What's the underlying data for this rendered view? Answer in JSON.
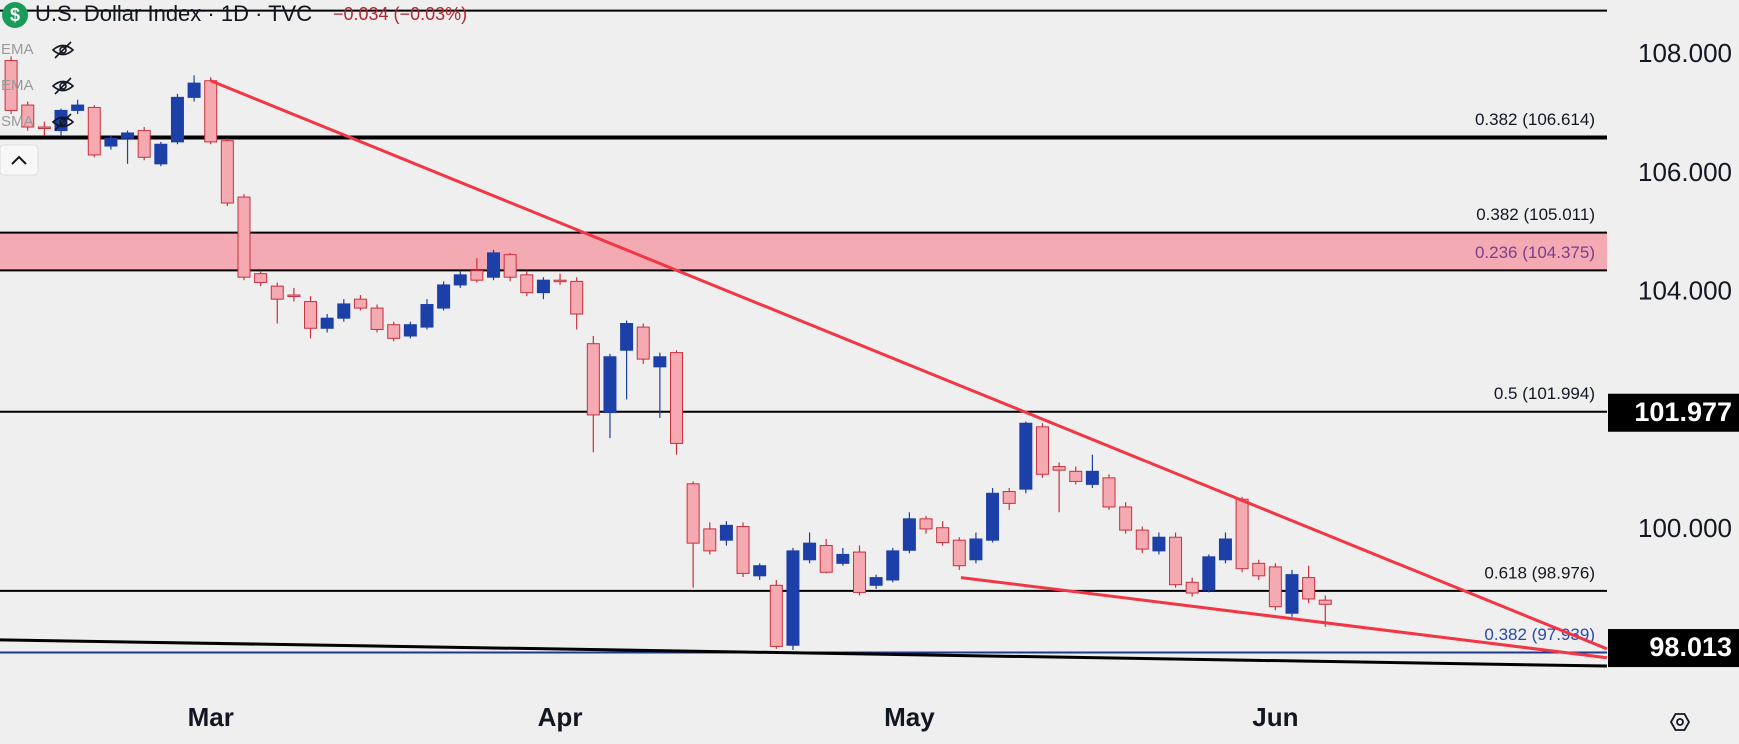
{
  "chart_data": {
    "type": "candlestick",
    "title": "U.S. Dollar Index · 1D · TVC",
    "change": "−0.034 (−0.03%)",
    "logo": "$",
    "indicators": [
      "EMA",
      "EMA",
      "SMA"
    ],
    "categories": [
      null,
      null,
      null,
      null,
      null,
      null,
      null,
      null,
      null,
      null,
      null,
      null,
      "Mar",
      null,
      null,
      null,
      null,
      null,
      null,
      null,
      null,
      null,
      null,
      null,
      null,
      null,
      null,
      null,
      null,
      null,
      null,
      null,
      null,
      "Apr",
      null,
      null,
      null,
      null,
      null,
      null,
      null,
      null,
      null,
      null,
      null,
      null,
      null,
      null,
      null,
      null,
      null,
      null,
      null,
      null,
      "May",
      null,
      null,
      null,
      null,
      null,
      null,
      null,
      null,
      null,
      null,
      null,
      null,
      null,
      null,
      null,
      null,
      null,
      null,
      null,
      null,
      null,
      "Jun",
      null,
      null,
      null
    ],
    "open": [
      107.91,
      107.16,
      106.79,
      106.73,
      107.07,
      107.12,
      106.47,
      106.6,
      106.73,
      106.17,
      106.54,
      107.29,
      107.57,
      106.56,
      105.61,
      104.32,
      104.11,
      103.96,
      103.85,
      103.4,
      103.57,
      103.89,
      103.74,
      103.46,
      103.27,
      103.42,
      103.74,
      104.13,
      104.37,
      104.26,
      104.64,
      104.3,
      104.0,
      104.21,
      104.19,
      103.14,
      101.98,
      103.03,
      103.42,
      102.75,
      102.99,
      100.78,
      100.02,
      99.83,
      100.06,
      99.23,
      99.07,
      98.06,
      99.5,
      99.74,
      99.44,
      99.63,
      99.07,
      99.16,
      99.66,
      100.19,
      100.04,
      99.83,
      99.5,
      99.83,
      100.65,
      100.69,
      101.74,
      101.07,
      100.99,
      100.77,
      100.88,
      100.39,
      100.0,
      99.65,
      99.88,
      99.12,
      98.99,
      99.5,
      100.52,
      99.44,
      99.38,
      98.6,
      99.2,
      98.82
    ],
    "high": [
      107.98,
      107.22,
      106.88,
      107.1,
      107.25,
      107.16,
      106.65,
      106.73,
      106.79,
      106.54,
      107.35,
      107.66,
      107.63,
      106.6,
      105.66,
      104.37,
      104.17,
      104.08,
      103.94,
      103.64,
      103.89,
      103.96,
      103.8,
      103.51,
      103.51,
      103.89,
      104.19,
      104.37,
      104.58,
      104.72,
      104.67,
      104.37,
      104.26,
      104.32,
      104.26,
      103.27,
      102.97,
      103.53,
      103.48,
      102.99,
      103.03,
      100.82,
      100.13,
      100.15,
      100.13,
      99.44,
      99.16,
      99.7,
      99.96,
      99.85,
      99.7,
      99.74,
      99.25,
      99.7,
      100.3,
      100.24,
      100.15,
      99.88,
      99.96,
      100.71,
      100.71,
      101.83,
      101.8,
      101.14,
      101.07,
      101.27,
      100.94,
      100.47,
      100.06,
      99.96,
      99.96,
      99.2,
      99.59,
      99.96,
      100.56,
      99.5,
      99.44,
      99.33,
      99.4,
      98.9
    ],
    "low": [
      107.01,
      106.73,
      106.65,
      106.65,
      107.01,
      106.28,
      106.41,
      106.17,
      106.23,
      106.13,
      106.5,
      107.22,
      106.5,
      105.46,
      104.21,
      104.11,
      103.48,
      103.85,
      103.23,
      103.33,
      103.51,
      103.7,
      103.33,
      103.18,
      103.23,
      103.38,
      103.7,
      104.08,
      104.17,
      104.21,
      104.19,
      103.94,
      103.89,
      104.13,
      103.38,
      101.31,
      101.55,
      102.2,
      102.8,
      101.89,
      101.27,
      99.03,
      99.59,
      99.74,
      99.21,
      99.16,
      98.0,
      97.98,
      99.44,
      99.27,
      99.4,
      98.9,
      99.01,
      99.12,
      99.61,
      99.94,
      99.74,
      99.33,
      99.44,
      99.79,
      100.34,
      100.62,
      100.88,
      100.3,
      100.77,
      100.71,
      100.34,
      99.94,
      99.61,
      99.59,
      99.03,
      98.88,
      98.95,
      99.44,
      99.29,
      99.16,
      98.65,
      98.54,
      98.77,
      98.37
    ],
    "close": [
      107.07,
      106.79,
      106.77,
      107.07,
      107.16,
      106.32,
      106.6,
      106.69,
      106.28,
      106.5,
      107.29,
      107.53,
      106.54,
      105.51,
      104.26,
      104.17,
      103.89,
      103.94,
      103.4,
      103.57,
      103.81,
      103.74,
      103.38,
      103.23,
      103.46,
      103.8,
      104.13,
      104.3,
      104.21,
      104.67,
      104.26,
      104.0,
      104.21,
      104.19,
      103.64,
      101.94,
      102.92,
      103.48,
      102.88,
      102.92,
      101.46,
      99.78,
      99.65,
      100.08,
      99.27,
      99.4,
      98.04,
      99.65,
      99.78,
      99.29,
      99.59,
      98.95,
      99.2,
      99.65,
      100.19,
      100.02,
      99.79,
      99.4,
      99.85,
      100.62,
      100.45,
      101.8,
      100.94,
      101.01,
      100.82,
      100.99,
      100.39,
      100.0,
      99.68,
      99.88,
      99.08,
      98.94,
      99.55,
      99.85,
      99.35,
      99.23,
      98.71,
      99.25,
      98.84,
      98.75
    ],
    "up_color": "#1c3fa8",
    "down_color": "#f5a9b0",
    "down_border": "#c9313f",
    "ylim": [
      97.34,
      108.93
    ],
    "yticks": [
      {
        "value": 100,
        "label": "100.000"
      },
      {
        "value": 104,
        "label": "104.000"
      },
      {
        "value": 106,
        "label": "106.000"
      },
      {
        "value": 108,
        "label": "108.000"
      }
    ],
    "levels": [
      {
        "price": 108.75,
        "color": "#000000"
      },
      {
        "price": 106.614,
        "label": "0.382 (106.614)",
        "color": "#000000",
        "label_color": "#131722",
        "width": 4
      },
      {
        "price": 105.011,
        "label": "0.382 (105.011)",
        "color": "#000000",
        "label_color": "#131722",
        "width": 2
      },
      {
        "price": 104.375,
        "label": "0.236 (104.375)",
        "color": "#000000",
        "label_color": "#7b3f8f",
        "width": 2
      },
      {
        "price": 101.994,
        "label": "0.5 (101.994)",
        "color": "#000000",
        "label_color": "#131722",
        "width": 2
      },
      {
        "price": 98.976,
        "label": "0.618 (98.976)",
        "color": "#000000",
        "label_color": "#131722",
        "width": 2
      },
      {
        "price": 97.939,
        "label": "0.382 (97.939)",
        "color": "#1e3a8a",
        "label_color": "#2a4aa8",
        "width": 2
      }
    ],
    "zone": {
      "from": 104.375,
      "to": 105.011,
      "color": "#f4aab2"
    },
    "trendlines": [
      {
        "start": [
          12,
          107.57
        ],
        "end": [
          95.93,
          98.0
        ],
        "color": "#f23645"
      },
      {
        "start": [
          57.1,
          99.2
        ],
        "end": [
          95.93,
          97.85
        ],
        "color": "#f23645"
      },
      {
        "start": [
          -0.67,
          98.15
        ],
        "end": [
          95.93,
          97.71
        ],
        "color": "#000000"
      }
    ],
    "price_labels": [
      101.977,
      98.013
    ]
  }
}
